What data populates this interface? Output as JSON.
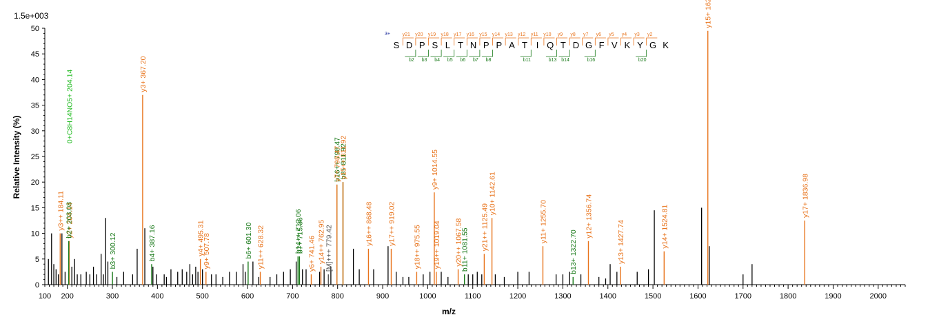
{
  "chart_data": {
    "type": "bar",
    "subtype": "mass-spectrum",
    "scale_label": "1.5e+003",
    "xlabel": "m/z",
    "ylabel": "Relative   Intensity (%)",
    "xlim": [
      150,
      2060
    ],
    "ylim": [
      0,
      50
    ],
    "x_ticks": [
      100,
      200,
      300,
      400,
      500,
      600,
      700,
      800,
      900,
      1000,
      1100,
      1200,
      1300,
      1400,
      1500,
      1600,
      1700,
      1800,
      1900,
      2000
    ],
    "y_ticks": [
      0,
      5,
      10,
      15,
      20,
      25,
      30,
      35,
      40,
      45,
      50
    ],
    "colors": {
      "y_ion": "#e8731b",
      "b_ion": "#1a7a1a",
      "other_ion": "#555555",
      "precursor_fragment": "#22bb22",
      "unassigned": "#000000",
      "charge_state": "#1a2a9a"
    },
    "annotated_peaks": [
      {
        "label": "y3++ 184.11",
        "mz": 184.11,
        "intensity": 10.0,
        "ion": "y"
      },
      {
        "label": "y2+ 204.14",
        "mz": 204.14,
        "intensity": 8.5,
        "ion": "y"
      },
      {
        "label": "b2+ 203.08",
        "mz": 203.08,
        "intensity": 8.5,
        "ion": "b"
      },
      {
        "label": "0+C8H14NO5+ 204.14",
        "mz": 204.14,
        "intensity": 27.0,
        "ion": "other_green"
      },
      {
        "label": "b3+ 300.12",
        "mz": 300.12,
        "intensity": 2.5,
        "ion": "b"
      },
      {
        "label": "y3+ 367.20",
        "mz": 367.2,
        "intensity": 37.0,
        "ion": "y"
      },
      {
        "label": "b4+ 387.16",
        "mz": 387.16,
        "intensity": 4.0,
        "ion": "b"
      },
      {
        "label": "y4+ 495.31",
        "mz": 495.31,
        "intensity": 5.0,
        "ion": "y"
      },
      {
        "label": "y9+ 507.78",
        "mz": 507.78,
        "intensity": 2.5,
        "ion": "y"
      },
      {
        "label": "b6+ 601.30",
        "mz": 601.3,
        "intensity": 4.5,
        "ion": "b"
      },
      {
        "label": "y11++ 628.32",
        "mz": 628.32,
        "intensity": 2.5,
        "ion": "y"
      },
      {
        "label": "b7+ 715.36",
        "mz": 715.36,
        "intensity": 5.5,
        "ion": "b"
      },
      {
        "label": "b14++ 712.06",
        "mz": 712.06,
        "intensity": 5.5,
        "ion": "b"
      },
      {
        "label": "y6+ 741.46",
        "mz": 741.46,
        "intensity": 2.0,
        "ion": "y"
      },
      {
        "label": "y14++ 762.95",
        "mz": 762.95,
        "intensity": 3.5,
        "ion": "y"
      },
      {
        "label": "[M]+++ 779.42",
        "mz": 779.42,
        "intensity": 2.0,
        "ion": "other"
      },
      {
        "label": "b16++ 798.47",
        "mz": 798.47,
        "intensity": 19.5,
        "ion": "b"
      },
      {
        "label": "b8+ 811.92",
        "mz": 811.92,
        "intensity": 20.0,
        "ion": "b"
      },
      {
        "label": "y7+ 798.47",
        "mz": 798.47,
        "intensity": 19.5,
        "ion": "y"
      },
      {
        "label": "y15++ 811.92",
        "mz": 811.92,
        "intensity": 20.0,
        "ion": "y"
      },
      {
        "label": "y16++ 868.48",
        "mz": 868.48,
        "intensity": 7.0,
        "ion": "y"
      },
      {
        "label": "y17++ 919.02",
        "mz": 919.02,
        "intensity": 7.0,
        "ion": "y"
      },
      {
        "label": "y18++ 975.55",
        "mz": 975.55,
        "intensity": 2.5,
        "ion": "y"
      },
      {
        "label": "y9+ 1014.55",
        "mz": 1014.55,
        "intensity": 18.0,
        "ion": "y"
      },
      {
        "label": "y19++ 1019.04",
        "mz": 1019.04,
        "intensity": 2.5,
        "ion": "y"
      },
      {
        "label": "y20++ 1067.58",
        "mz": 1067.58,
        "intensity": 3.0,
        "ion": "y"
      },
      {
        "label": "b11+ 1081.55",
        "mz": 1081.55,
        "intensity": 2.0,
        "ion": "b"
      },
      {
        "label": "y21++ 1125.49",
        "mz": 1125.49,
        "intensity": 6.0,
        "ion": "y"
      },
      {
        "label": "y10+ 1142.61",
        "mz": 1142.61,
        "intensity": 13.0,
        "ion": "y"
      },
      {
        "label": "y11+ 1255.70",
        "mz": 1255.7,
        "intensity": 7.5,
        "ion": "y"
      },
      {
        "label": "b13+ 1322.70",
        "mz": 1322.7,
        "intensity": 1.5,
        "ion": "b"
      },
      {
        "label": "y12+ 1356.74",
        "mz": 1356.74,
        "intensity": 8.5,
        "ion": "y"
      },
      {
        "label": "y13+ 1427.74",
        "mz": 1427.74,
        "intensity": 3.5,
        "ion": "y"
      },
      {
        "label": "y14+ 1524.81",
        "mz": 1524.81,
        "intensity": 6.5,
        "ion": "y"
      },
      {
        "label": "y15+ 1621.87",
        "mz": 1621.87,
        "intensity": 49.5,
        "ion": "y"
      },
      {
        "label": "y17+ 1836.98",
        "mz": 1836.98,
        "intensity": 12.5,
        "ion": "y"
      }
    ],
    "unassigned_peaks": [
      [
        158,
        5
      ],
      [
        165,
        10
      ],
      [
        170,
        4
      ],
      [
        175,
        3
      ],
      [
        180,
        2
      ],
      [
        188,
        10
      ],
      [
        195,
        2.5
      ],
      [
        210,
        3.5
      ],
      [
        216,
        5
      ],
      [
        222,
        2
      ],
      [
        230,
        2
      ],
      [
        242,
        2.5
      ],
      [
        250,
        2
      ],
      [
        258,
        3.5
      ],
      [
        265,
        2
      ],
      [
        275,
        6
      ],
      [
        280,
        2
      ],
      [
        285,
        13
      ],
      [
        290,
        4.5
      ],
      [
        310,
        1.5
      ],
      [
        325,
        2.5
      ],
      [
        345,
        2
      ],
      [
        355,
        7
      ],
      [
        372,
        11
      ],
      [
        390,
        3.5
      ],
      [
        398,
        2
      ],
      [
        415,
        2
      ],
      [
        420,
        1.5
      ],
      [
        430,
        3
      ],
      [
        445,
        2.5
      ],
      [
        455,
        3
      ],
      [
        465,
        2.5
      ],
      [
        472,
        4
      ],
      [
        478,
        2
      ],
      [
        485,
        3.5
      ],
      [
        490,
        2.5
      ],
      [
        500,
        3
      ],
      [
        520,
        2
      ],
      [
        530,
        2
      ],
      [
        545,
        1.5
      ],
      [
        560,
        2.5
      ],
      [
        575,
        2.5
      ],
      [
        590,
        4
      ],
      [
        595,
        2.5
      ],
      [
        612,
        4.5
      ],
      [
        625,
        1.5
      ],
      [
        650,
        1.5
      ],
      [
        665,
        2
      ],
      [
        680,
        2.5
      ],
      [
        695,
        3
      ],
      [
        708,
        4.5
      ],
      [
        722,
        3
      ],
      [
        730,
        3
      ],
      [
        760,
        2.5
      ],
      [
        770,
        3
      ],
      [
        785,
        3.5
      ],
      [
        835,
        7
      ],
      [
        848,
        3
      ],
      [
        880,
        3
      ],
      [
        912,
        7.5
      ],
      [
        930,
        2.5
      ],
      [
        945,
        1.5
      ],
      [
        958,
        1.5
      ],
      [
        990,
        2
      ],
      [
        1005,
        2.5
      ],
      [
        1030,
        2.5
      ],
      [
        1045,
        1.5
      ],
      [
        1090,
        2
      ],
      [
        1100,
        2
      ],
      [
        1110,
        2.5
      ],
      [
        1120,
        2
      ],
      [
        1150,
        2
      ],
      [
        1170,
        1.5
      ],
      [
        1200,
        2.5
      ],
      [
        1225,
        2.5
      ],
      [
        1285,
        2
      ],
      [
        1300,
        2
      ],
      [
        1315,
        2.5
      ],
      [
        1340,
        2
      ],
      [
        1380,
        1.5
      ],
      [
        1395,
        1.2
      ],
      [
        1405,
        4
      ],
      [
        1420,
        2.5
      ],
      [
        1465,
        2.5
      ],
      [
        1490,
        3
      ],
      [
        1503,
        14.5
      ],
      [
        1608,
        15
      ],
      [
        1625,
        7.5
      ],
      [
        1700,
        2
      ],
      [
        1720,
        4
      ]
    ],
    "sequence": {
      "charge_label": "3+",
      "residues": [
        "S",
        "D",
        "P",
        "S",
        "L",
        "T",
        "N",
        "P",
        "P",
        "A",
        "T",
        "I",
        "Q",
        "T",
        "D",
        "G",
        "F",
        "V",
        "K",
        "Y",
        "G",
        "K"
      ],
      "y_ion_labels": [
        "y21",
        "y20",
        "y19",
        "y18",
        "y17",
        "y16",
        "y15",
        "y14",
        "y13",
        "y12",
        "y11",
        "y10",
        "y9",
        "y8",
        "y7",
        "y6",
        "y5",
        "y4",
        "y3",
        "y2"
      ],
      "b_ion_labels": [
        "b2",
        "b3",
        "b4",
        "b5",
        "b6",
        "b7",
        "b8",
        "b11",
        "b13",
        "b14",
        "b16",
        "b20"
      ],
      "b_ion_positions": [
        1,
        2,
        3,
        4,
        5,
        6,
        7,
        10,
        12,
        13,
        15,
        19
      ]
    }
  }
}
